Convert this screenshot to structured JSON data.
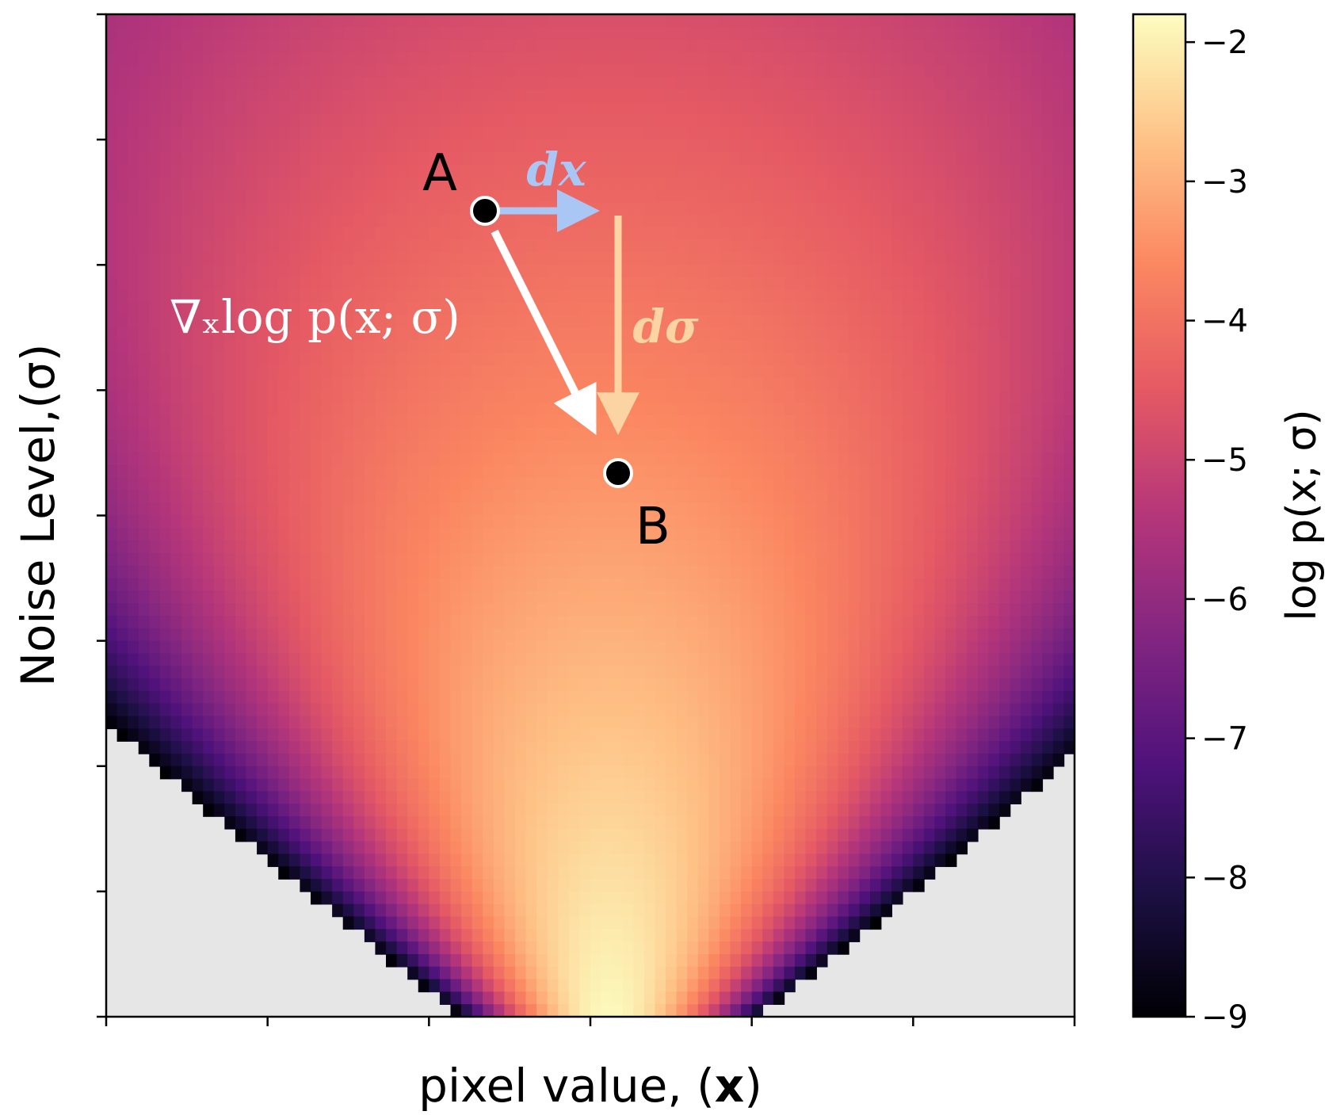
{
  "chart_data": {
    "type": "heatmap",
    "title": "",
    "xlabel_prefix": "pixel value, (",
    "xlabel_var": "x",
    "xlabel_suffix": ")",
    "ylabel": "Noise Level,(σ)",
    "colorbar": {
      "label": "log p(x; σ)",
      "ticks": [
        -2,
        -3,
        -4,
        -5,
        -6,
        -7,
        -8,
        -9
      ],
      "tick_labels": [
        "−2",
        "−3",
        "−4",
        "−5",
        "−6",
        "−7",
        "−8",
        "−9"
      ],
      "range": [
        -9,
        -1.8
      ],
      "colormap": "magma"
    },
    "x_tick_count": 7,
    "y_tick_count": 9,
    "x_tick_labels_shown": false,
    "y_tick_labels_shown": false,
    "masked_color": "#e6e6e6",
    "annotations": {
      "point_a": "A",
      "point_b": "B",
      "dx_label": "dx",
      "dsigma_label": "dσ",
      "gradient_label": "∇ₓlog p(x; σ)",
      "dx_color": "#a9c6f5",
      "dsigma_color": "#fcd3a3",
      "gradient_color": "#ffffff"
    }
  }
}
